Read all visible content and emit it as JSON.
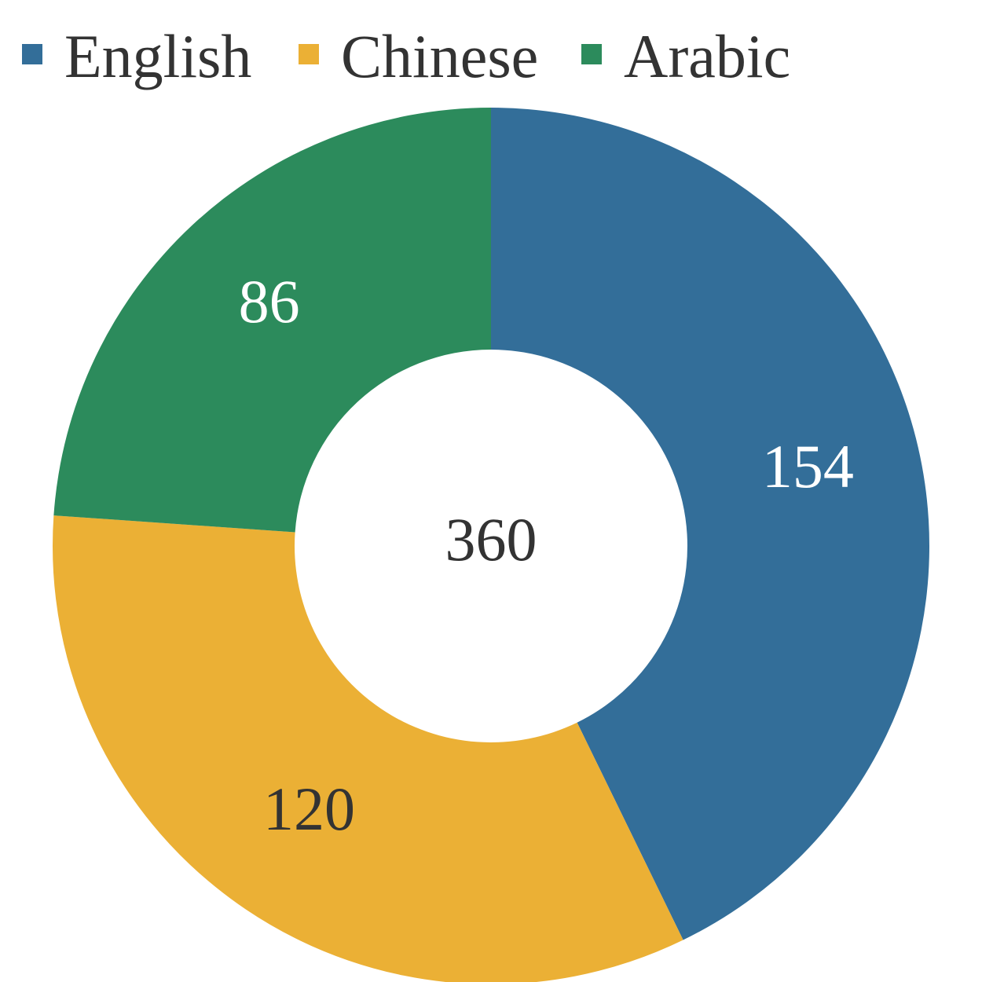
{
  "chart_data": {
    "type": "pie",
    "variant": "donut",
    "categories": [
      "English",
      "Chinese",
      "Arabic"
    ],
    "values": [
      154,
      120,
      86
    ],
    "colors": [
      "#336e99",
      "#ebb035",
      "#2c8b5c"
    ],
    "label_colors": [
      "#ffffff",
      "#333333",
      "#ffffff"
    ],
    "center_label": "360",
    "legend": {
      "placement": "top-left",
      "entries": [
        "English",
        "Chinese",
        "Arabic"
      ]
    },
    "start_angle_deg": 0,
    "direction": "clockwise"
  }
}
